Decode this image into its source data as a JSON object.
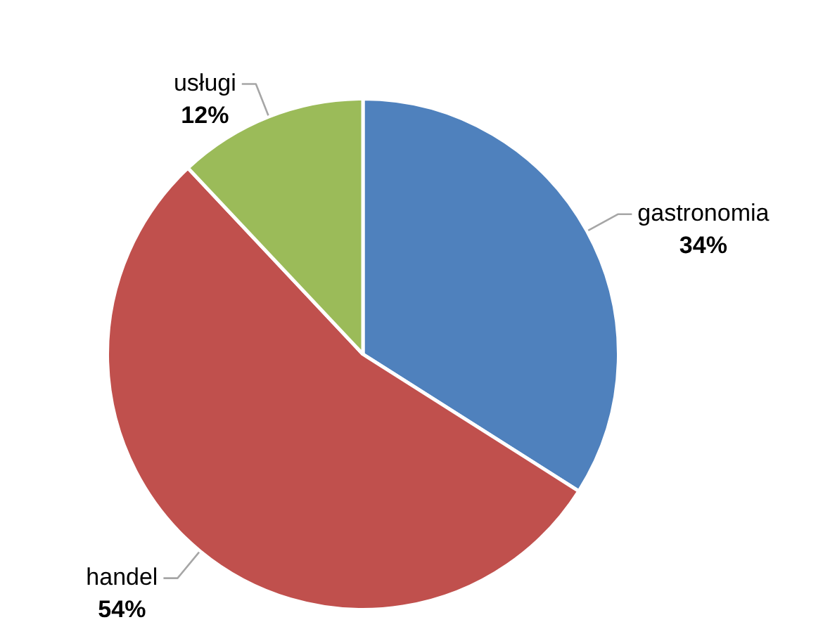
{
  "chart_data": {
    "type": "pie",
    "categories": [
      "gastronomia",
      "handel",
      "usługi"
    ],
    "values": [
      34,
      54,
      12
    ],
    "colors": [
      "#4f81bd",
      "#c0504d",
      "#9bbb59"
    ],
    "value_labels": [
      "34%",
      "54%",
      "12%"
    ]
  }
}
